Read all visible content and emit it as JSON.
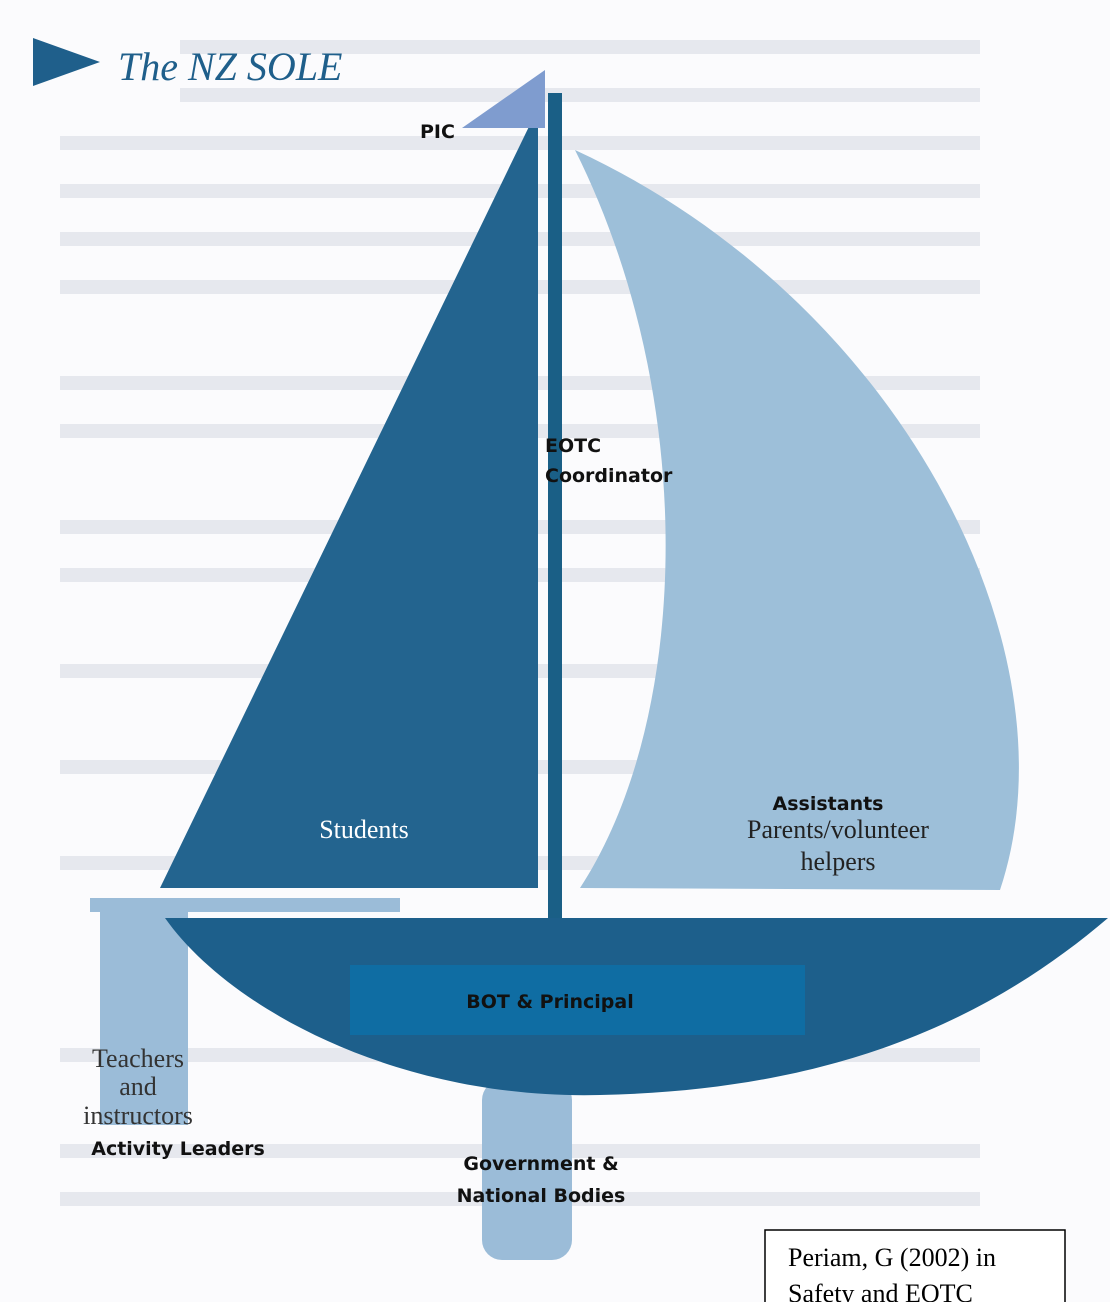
{
  "title": "The NZ SOLE",
  "flag": "PIC",
  "mast": [
    "EOTC",
    "Coordinator"
  ],
  "left_sail": "Students",
  "right_sail": {
    "heading": "Assistants",
    "lines": [
      "Parents/volunteer",
      "helpers"
    ]
  },
  "hull": "BOT & Principal",
  "boom": {
    "lines": [
      "Teachers",
      "and",
      "instructors"
    ],
    "heading": "Activity Leaders"
  },
  "keel": [
    "Government &",
    "National Bodies"
  ],
  "citation": [
    "Periam, G (2002) in",
    "Safety and EOTC"
  ]
}
